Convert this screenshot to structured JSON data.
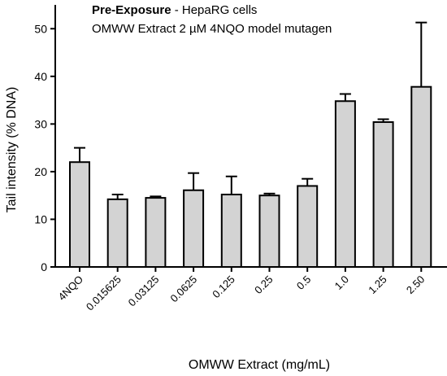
{
  "chart_data": {
    "type": "bar",
    "title_bold": "Pre-Exposure",
    "title_rest": " - HepaRG cells",
    "subtitle": "OMWW Extract  2 µM 4NQO model mutagen",
    "xlabel": "OMWW Extract (mg/mL)",
    "ylabel": "Tail intensity (% DNA)",
    "ylim": [
      0,
      55
    ],
    "yticks": [
      0,
      10,
      20,
      30,
      40,
      50
    ],
    "ytick_labels": [
      "0",
      "10",
      "20",
      "30",
      "40",
      "50"
    ],
    "categories": [
      "4NQO",
      "0.015625",
      "0.03125",
      "0.0625",
      "0.125",
      "0.25",
      "0.5",
      "1.0",
      "1.25",
      "2.50"
    ],
    "values": [
      22.0,
      14.2,
      14.5,
      16.1,
      15.2,
      15.0,
      17.0,
      34.8,
      30.4,
      37.8
    ],
    "errors": [
      3.0,
      1.0,
      0.3,
      3.6,
      3.8,
      0.4,
      1.5,
      1.5,
      0.6,
      13.5
    ],
    "bar_color": "#d3d3d3",
    "grid": false
  }
}
